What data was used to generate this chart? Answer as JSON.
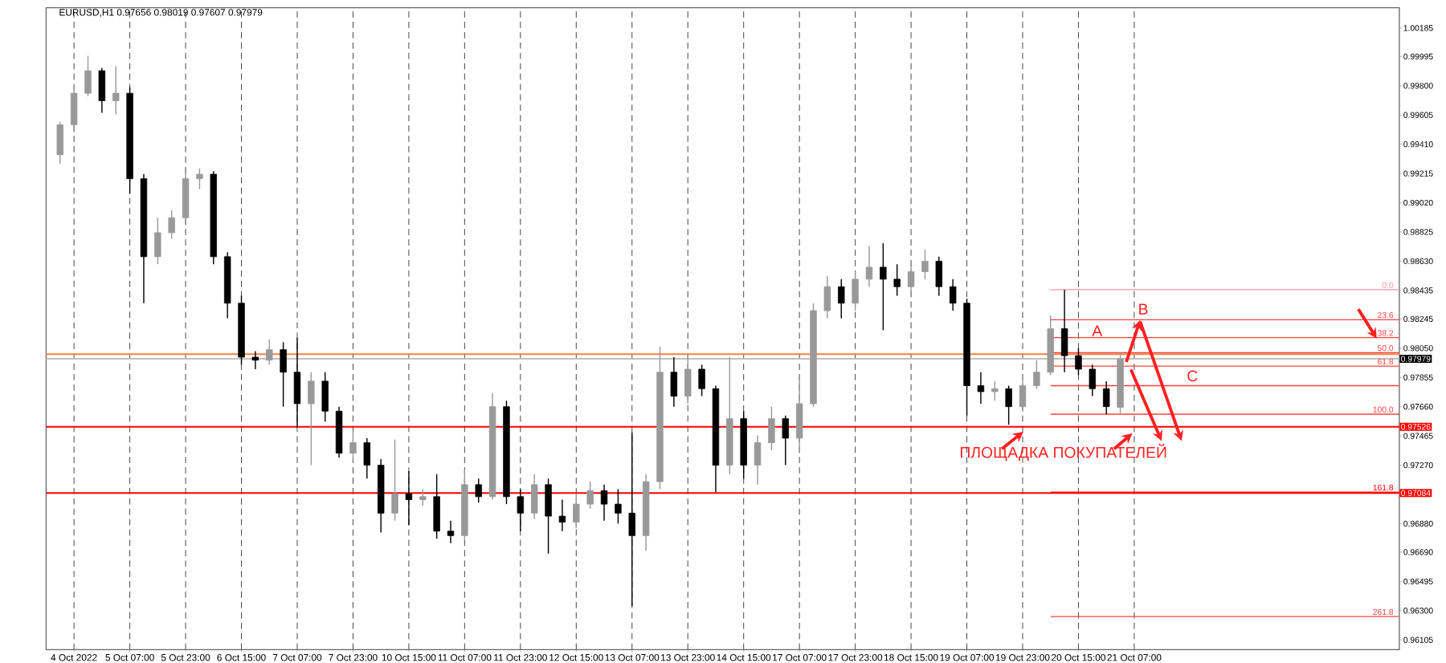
{
  "chart_data": {
    "type": "candlestick",
    "title": "EURUSD,H1  0.97656 0.98019 0.97607 0.97979",
    "categories": [
      null,
      "4 Oct 2022",
      null,
      null,
      null,
      "5 Oct 07:00",
      null,
      null,
      null,
      "5 Oct 23:00",
      null,
      null,
      null,
      "6 Oct 15:00",
      null,
      null,
      null,
      "7 Oct 07:00",
      null,
      null,
      null,
      "7 Oct 23:00",
      null,
      null,
      null,
      "10 Oct 15:00",
      null,
      null,
      null,
      "11 Oct 07:00",
      null,
      null,
      null,
      "11 Oct 23:00",
      null,
      null,
      null,
      "12 Oct 15:00",
      null,
      null,
      null,
      "13 Oct 07:00",
      null,
      null,
      null,
      "13 Oct 23:00",
      null,
      null,
      null,
      "14 Oct 15:00",
      null,
      null,
      null,
      "17 Oct 07:00",
      null,
      null,
      null,
      "17 Oct 23:00",
      null,
      null,
      null,
      "18 Oct 15:00",
      null,
      null,
      null,
      "19 Oct 07:00",
      null,
      null,
      null,
      "19 Oct 23:00",
      null,
      null,
      null,
      "20 Oct 15:00",
      null,
      null,
      null,
      "21 Oct 07:00",
      null,
      null,
      null,
      null,
      null,
      null,
      null,
      null,
      null,
      null,
      null,
      null,
      null,
      null,
      null,
      null,
      null,
      null,
      null
    ],
    "ohlc": [
      [
        0.9934,
        0.9956,
        0.9928,
        0.9954
      ],
      [
        0.9954,
        0.998,
        0.9949,
        0.9975
      ],
      [
        0.9975,
        1.0,
        0.9973,
        0.999
      ],
      [
        0.999,
        0.9992,
        0.9962,
        0.997
      ],
      [
        0.997,
        0.9993,
        0.9961,
        0.9975
      ],
      [
        0.9975,
        0.9979,
        0.9908,
        0.9918
      ],
      [
        0.9918,
        0.9921,
        0.9835,
        0.9866
      ],
      [
        0.9866,
        0.9892,
        0.9861,
        0.9882
      ],
      [
        0.9882,
        0.9897,
        0.9878,
        0.9892
      ],
      [
        0.9892,
        0.9925,
        0.9887,
        0.9918
      ],
      [
        0.9918,
        0.9925,
        0.9911,
        0.9921
      ],
      [
        0.9921,
        0.9923,
        0.9861,
        0.9866
      ],
      [
        0.9866,
        0.9869,
        0.9825,
        0.9835
      ],
      [
        0.9835,
        0.984,
        0.9794,
        0.9799
      ],
      [
        0.9799,
        0.9803,
        0.9791,
        0.9797
      ],
      [
        0.9797,
        0.9811,
        0.9794,
        0.9804
      ],
      [
        0.9804,
        0.9809,
        0.9766,
        0.9789
      ],
      [
        0.9789,
        0.9812,
        0.9752,
        0.9768
      ],
      [
        0.9768,
        0.9789,
        0.9727,
        0.9783
      ],
      [
        0.9783,
        0.9789,
        0.9756,
        0.9763
      ],
      [
        0.9763,
        0.9766,
        0.9732,
        0.9735
      ],
      [
        0.9735,
        0.975,
        0.9731,
        0.9742
      ],
      [
        0.9742,
        0.9745,
        0.9718,
        0.9727
      ],
      [
        0.9727,
        0.9731,
        0.9682,
        0.9695
      ],
      [
        0.9695,
        0.9744,
        0.969,
        0.9708
      ],
      [
        0.9708,
        0.9723,
        0.9687,
        0.9704
      ],
      [
        0.9704,
        0.9711,
        0.97,
        0.9706
      ],
      [
        0.9706,
        0.9721,
        0.9678,
        0.9683
      ],
      [
        0.9683,
        0.969,
        0.9675,
        0.968
      ],
      [
        0.968,
        0.9724,
        0.9677,
        0.9714
      ],
      [
        0.9714,
        0.9718,
        0.9702,
        0.9706
      ],
      [
        0.9706,
        0.9775,
        0.9704,
        0.9766
      ],
      [
        0.9766,
        0.977,
        0.9701,
        0.9706
      ],
      [
        0.9706,
        0.9711,
        0.9683,
        0.9695
      ],
      [
        0.9695,
        0.9721,
        0.9691,
        0.9714
      ],
      [
        0.9714,
        0.9718,
        0.9668,
        0.9693
      ],
      [
        0.9693,
        0.9704,
        0.9683,
        0.9689
      ],
      [
        0.9689,
        0.9708,
        0.9685,
        0.9701
      ],
      [
        0.9701,
        0.9716,
        0.9698,
        0.971
      ],
      [
        0.971,
        0.9714,
        0.969,
        0.9701
      ],
      [
        0.9701,
        0.9711,
        0.9688,
        0.9695
      ],
      [
        0.9695,
        0.9749,
        0.9633,
        0.968
      ],
      [
        0.968,
        0.9721,
        0.967,
        0.9716
      ],
      [
        0.9716,
        0.9806,
        0.9711,
        0.9789
      ],
      [
        0.9789,
        0.9799,
        0.9766,
        0.9773
      ],
      [
        0.9773,
        0.9801,
        0.9768,
        0.9791
      ],
      [
        0.9791,
        0.9794,
        0.9773,
        0.9778
      ],
      [
        0.9778,
        0.978,
        0.9709,
        0.9727
      ],
      [
        0.9727,
        0.9799,
        0.9721,
        0.9758
      ],
      [
        0.9758,
        0.9763,
        0.9718,
        0.9727
      ],
      [
        0.9727,
        0.9747,
        0.9714,
        0.9742
      ],
      [
        0.9742,
        0.9766,
        0.9737,
        0.9758
      ],
      [
        0.9758,
        0.976,
        0.9727,
        0.9745
      ],
      [
        0.9745,
        0.9786,
        0.9735,
        0.9768
      ],
      [
        0.9768,
        0.9835,
        0.9766,
        0.983
      ],
      [
        0.983,
        0.9853,
        0.9825,
        0.9846
      ],
      [
        0.9846,
        0.9851,
        0.9825,
        0.9835
      ],
      [
        0.9835,
        0.9856,
        0.983,
        0.9851
      ],
      [
        0.9851,
        0.9873,
        0.9846,
        0.9859
      ],
      [
        0.9859,
        0.9875,
        0.9817,
        0.9851
      ],
      [
        0.9851,
        0.9861,
        0.984,
        0.9846
      ],
      [
        0.9846,
        0.9861,
        0.984,
        0.9856
      ],
      [
        0.9856,
        0.9871,
        0.9851,
        0.9863
      ],
      [
        0.9863,
        0.9866,
        0.984,
        0.9846
      ],
      [
        0.9846,
        0.9851,
        0.983,
        0.9835
      ],
      [
        0.9835,
        0.9838,
        0.976,
        0.978
      ],
      [
        0.978,
        0.9789,
        0.9768,
        0.9776
      ],
      [
        0.9776,
        0.9783,
        0.977,
        0.9778
      ],
      [
        0.9778,
        0.978,
        0.9754,
        0.9766
      ],
      [
        0.9766,
        0.9784,
        0.9763,
        0.978
      ],
      [
        0.978,
        0.9797,
        0.9778,
        0.9789
      ],
      [
        0.9789,
        0.9827,
        0.9787,
        0.9818
      ],
      [
        0.9818,
        0.9844,
        0.9789,
        0.98
      ],
      [
        0.98,
        0.9805,
        0.9787,
        0.9791
      ],
      [
        0.9791,
        0.9794,
        0.9773,
        0.9778
      ],
      [
        0.9778,
        0.9783,
        0.9761,
        0.9766
      ],
      [
        0.97656,
        0.98019,
        0.97607,
        0.97979
      ],
      null,
      null,
      null,
      null,
      null,
      null,
      null,
      null,
      null,
      null,
      null,
      null,
      null,
      null,
      null,
      null,
      null,
      null,
      null,
      null
    ],
    "colors": [
      "#999999",
      "#999999",
      "#999999",
      "#000000",
      "#999999",
      "#000000",
      "#000000",
      "#999999",
      "#999999",
      "#999999",
      "#999999",
      "#000000",
      "#000000",
      "#000000",
      "#000000",
      "#999999",
      "#000000",
      "#000000",
      "#999999",
      "#000000",
      "#000000",
      "#999999",
      "#000000",
      "#000000",
      "#999999",
      "#000000",
      "#999999",
      "#000000",
      "#000000",
      "#999999",
      "#000000",
      "#999999",
      "#000000",
      "#000000",
      "#999999",
      "#000000",
      "#000000",
      "#999999",
      "#999999",
      "#000000",
      "#000000",
      "#000000",
      "#999999",
      "#999999",
      "#000000",
      "#999999",
      "#000000",
      "#000000",
      "#999999",
      "#000000",
      "#999999",
      "#999999",
      "#000000",
      "#999999",
      "#999999",
      "#999999",
      "#000000",
      "#999999",
      "#999999",
      "#000000",
      "#000000",
      "#999999",
      "#999999",
      "#000000",
      "#000000",
      "#000000",
      "#000000",
      "#999999",
      "#000000",
      "#999999",
      "#999999",
      "#999999",
      "#000000",
      "#000000",
      "#000000",
      "#000000",
      "#999999",
      null,
      null,
      null,
      null,
      null,
      null,
      null,
      null,
      null,
      null,
      null,
      null,
      null,
      null,
      null,
      null,
      null,
      null,
      null,
      null
    ],
    "series": [
      {
        "type": "line",
        "name": "0.0",
        "color": "#ff9999",
        "values": [
          null,
          null,
          null,
          null,
          null,
          null,
          null,
          null,
          null,
          null,
          null,
          null,
          null,
          null,
          null,
          null,
          null,
          null,
          null,
          null,
          null,
          null,
          null,
          null,
          null,
          null,
          null,
          null,
          null,
          null,
          null,
          null,
          null,
          null,
          null,
          null,
          null,
          null,
          null,
          null,
          null,
          null,
          null,
          null,
          null,
          null,
          null,
          null,
          null,
          null,
          null,
          null,
          null,
          null,
          null,
          null,
          null,
          null,
          null,
          null,
          null,
          null,
          null,
          null,
          null,
          null,
          null,
          null,
          null,
          null,
          null,
          0.9844,
          0.9844,
          0.9844,
          0.9844,
          0.9844,
          0.9844,
          0.9844,
          0.9844,
          0.9844,
          0.9844,
          0.9844,
          0.9844,
          0.9844,
          0.9844,
          0.9844,
          0.9844,
          0.9844,
          0.9844,
          0.9844,
          0.9844,
          0.9844,
          0.9844,
          0.9844,
          0.9844,
          0.9844,
          0.9844
        ]
      },
      {
        "type": "line",
        "name": "23.6",
        "color": "#ff4040",
        "values": [
          null,
          null,
          null,
          null,
          null,
          null,
          null,
          null,
          null,
          null,
          null,
          null,
          null,
          null,
          null,
          null,
          null,
          null,
          null,
          null,
          null,
          null,
          null,
          null,
          null,
          null,
          null,
          null,
          null,
          null,
          null,
          null,
          null,
          null,
          null,
          null,
          null,
          null,
          null,
          null,
          null,
          null,
          null,
          null,
          null,
          null,
          null,
          null,
          null,
          null,
          null,
          null,
          null,
          null,
          null,
          null,
          null,
          null,
          null,
          null,
          null,
          null,
          null,
          null,
          null,
          null,
          null,
          null,
          null,
          null,
          null,
          0.9824,
          0.9824,
          0.9824,
          0.9824,
          0.9824,
          0.9824,
          0.9824,
          0.9824,
          0.9824,
          0.9824,
          0.9824,
          0.9824,
          0.9824,
          0.9824,
          0.9824,
          0.9824,
          0.9824,
          0.9824,
          0.9824,
          0.9824,
          0.9824,
          0.9824,
          0.9824,
          0.9824,
          0.9824,
          0.9824
        ]
      },
      {
        "type": "line",
        "name": "38.2",
        "color": "#ff4040",
        "values": [
          null,
          null,
          null,
          null,
          null,
          null,
          null,
          null,
          null,
          null,
          null,
          null,
          null,
          null,
          null,
          null,
          null,
          null,
          null,
          null,
          null,
          null,
          null,
          null,
          null,
          null,
          null,
          null,
          null,
          null,
          null,
          null,
          null,
          null,
          null,
          null,
          null,
          null,
          null,
          null,
          null,
          null,
          null,
          null,
          null,
          null,
          null,
          null,
          null,
          null,
          null,
          null,
          null,
          null,
          null,
          null,
          null,
          null,
          null,
          null,
          null,
          null,
          null,
          null,
          null,
          null,
          null,
          null,
          null,
          null,
          null,
          0.9812,
          0.9812,
          0.9812,
          0.9812,
          0.9812,
          0.9812,
          0.9812,
          0.9812,
          0.9812,
          0.9812,
          0.9812,
          0.9812,
          0.9812,
          0.9812,
          0.9812,
          0.9812,
          0.9812,
          0.9812,
          0.9812,
          0.9812,
          0.9812,
          0.9812,
          0.9812,
          0.9812,
          0.9812,
          0.9812
        ]
      },
      {
        "type": "line",
        "name": "50.0",
        "color": "#ff4040",
        "values": [
          null,
          null,
          null,
          null,
          null,
          null,
          null,
          null,
          null,
          null,
          null,
          null,
          null,
          null,
          null,
          null,
          null,
          null,
          null,
          null,
          null,
          null,
          null,
          null,
          null,
          null,
          null,
          null,
          null,
          null,
          null,
          null,
          null,
          null,
          null,
          null,
          null,
          null,
          null,
          null,
          null,
          null,
          null,
          null,
          null,
          null,
          null,
          null,
          null,
          null,
          null,
          null,
          null,
          null,
          null,
          null,
          null,
          null,
          null,
          null,
          null,
          null,
          null,
          null,
          null,
          null,
          null,
          null,
          null,
          null,
          null,
          0.9802,
          0.9802,
          0.9802,
          0.9802,
          0.9802,
          0.9802,
          0.9802,
          0.9802,
          0.9802,
          0.9802,
          0.9802,
          0.9802,
          0.9802,
          0.9802,
          0.9802,
          0.9802,
          0.9802,
          0.9802,
          0.9802,
          0.9802,
          0.9802,
          0.9802,
          0.9802,
          0.9802,
          0.9802,
          0.9802
        ]
      },
      {
        "type": "line",
        "name": "61.8",
        "color": "#ff4040",
        "values": [
          null,
          null,
          null,
          null,
          null,
          null,
          null,
          null,
          null,
          null,
          null,
          null,
          null,
          null,
          null,
          null,
          null,
          null,
          null,
          null,
          null,
          null,
          null,
          null,
          null,
          null,
          null,
          null,
          null,
          null,
          null,
          null,
          null,
          null,
          null,
          null,
          null,
          null,
          null,
          null,
          null,
          null,
          null,
          null,
          null,
          null,
          null,
          null,
          null,
          null,
          null,
          null,
          null,
          null,
          null,
          null,
          null,
          null,
          null,
          null,
          null,
          null,
          null,
          null,
          null,
          null,
          null,
          null,
          null,
          null,
          null,
          0.9793,
          0.9793,
          0.9793,
          0.9793,
          0.9793,
          0.9793,
          0.9793,
          0.9793,
          0.9793,
          0.9793,
          0.9793,
          0.9793,
          0.9793,
          0.9793,
          0.9793,
          0.9793,
          0.9793,
          0.9793,
          0.9793,
          0.9793,
          0.9793,
          0.9793,
          0.9793,
          0.9793,
          0.9793,
          0.9793
        ]
      },
      {
        "type": "line",
        "color": "#ff4040",
        "values": [
          null,
          null,
          null,
          null,
          null,
          null,
          null,
          null,
          null,
          null,
          null,
          null,
          null,
          null,
          null,
          null,
          null,
          null,
          null,
          null,
          null,
          null,
          null,
          null,
          null,
          null,
          null,
          null,
          null,
          null,
          null,
          null,
          null,
          null,
          null,
          null,
          null,
          null,
          null,
          null,
          null,
          null,
          null,
          null,
          null,
          null,
          null,
          null,
          null,
          null,
          null,
          null,
          null,
          null,
          null,
          null,
          null,
          null,
          null,
          null,
          null,
          null,
          null,
          null,
          null,
          null,
          null,
          null,
          null,
          null,
          null,
          0.978,
          0.978,
          0.978,
          0.978,
          0.978,
          0.978,
          0.978,
          0.978,
          0.978,
          0.978,
          0.978,
          0.978,
          0.978,
          0.978,
          0.978,
          0.978,
          0.978,
          0.978,
          0.978,
          0.978,
          0.978,
          0.978,
          0.978,
          0.978,
          0.978,
          0.978
        ]
      },
      {
        "type": "line",
        "name": "100.0",
        "color": "#ff4040",
        "values": [
          null,
          null,
          null,
          null,
          null,
          null,
          null,
          null,
          null,
          null,
          null,
          null,
          null,
          null,
          null,
          null,
          null,
          null,
          null,
          null,
          null,
          null,
          null,
          null,
          null,
          null,
          null,
          null,
          null,
          null,
          null,
          null,
          null,
          null,
          null,
          null,
          null,
          null,
          null,
          null,
          null,
          null,
          null,
          null,
          null,
          null,
          null,
          null,
          null,
          null,
          null,
          null,
          null,
          null,
          null,
          null,
          null,
          null,
          null,
          null,
          null,
          null,
          null,
          null,
          null,
          null,
          null,
          null,
          null,
          null,
          null,
          0.9761,
          0.9761,
          0.9761,
          0.9761,
          0.9761,
          0.9761,
          0.9761,
          0.9761,
          0.9761,
          0.9761,
          0.9761,
          0.9761,
          0.9761,
          0.9761,
          0.9761,
          0.9761,
          0.9761,
          0.9761,
          0.9761,
          0.9761,
          0.9761,
          0.9761,
          0.9761,
          0.9761,
          0.9761,
          0.9761
        ]
      },
      {
        "type": "line",
        "name": "161.8",
        "color": "#ff0000",
        "values": [
          null,
          null,
          null,
          null,
          null,
          null,
          null,
          null,
          null,
          null,
          null,
          null,
          null,
          null,
          null,
          null,
          null,
          null,
          null,
          null,
          null,
          null,
          null,
          null,
          null,
          null,
          null,
          null,
          null,
          null,
          null,
          null,
          null,
          null,
          null,
          null,
          null,
          null,
          null,
          null,
          null,
          null,
          null,
          null,
          null,
          null,
          null,
          null,
          null,
          null,
          null,
          null,
          null,
          null,
          null,
          null,
          null,
          null,
          null,
          null,
          null,
          null,
          null,
          null,
          null,
          null,
          null,
          null,
          null,
          null,
          null,
          0.9709,
          0.9709,
          0.9709,
          0.9709,
          0.9709,
          0.9709,
          0.9709,
          0.9709,
          0.9709,
          0.9709,
          0.9709,
          0.9709,
          0.9709,
          0.9709,
          0.9709,
          0.9709,
          0.9709,
          0.9709,
          0.9709,
          0.9709,
          0.9709,
          0.9709,
          0.9709,
          0.9709,
          0.9709,
          0.9709
        ]
      },
      {
        "type": "line",
        "name": "261.8",
        "color": "#ff4040",
        "values": [
          null,
          null,
          null,
          null,
          null,
          null,
          null,
          null,
          null,
          null,
          null,
          null,
          null,
          null,
          null,
          null,
          null,
          null,
          null,
          null,
          null,
          null,
          null,
          null,
          null,
          null,
          null,
          null,
          null,
          null,
          null,
          null,
          null,
          null,
          null,
          null,
          null,
          null,
          null,
          null,
          null,
          null,
          null,
          null,
          null,
          null,
          null,
          null,
          null,
          null,
          null,
          null,
          null,
          null,
          null,
          null,
          null,
          null,
          null,
          null,
          null,
          null,
          null,
          null,
          null,
          null,
          null,
          null,
          null,
          null,
          null,
          0.9626,
          0.9626,
          0.9626,
          0.9626,
          0.9626,
          0.9626,
          0.9626,
          0.9626,
          0.9626,
          0.9626,
          0.9626,
          0.9626,
          0.9626,
          0.9626,
          0.9626,
          0.9626,
          0.9626,
          0.9626,
          0.9626,
          0.9626,
          0.9626,
          0.9626,
          0.9626,
          0.9626,
          0.9626,
          0.9626
        ]
      }
    ],
    "ref_lines": [
      {
        "axis": "y",
        "value": 0.9801,
        "color": "#ff8040"
      },
      {
        "axis": "y",
        "value": 0.97979,
        "label": "0.97979",
        "color": "#c0c0c0"
      },
      {
        "axis": "y",
        "value": 0.97526,
        "label": "0.97526",
        "color": "#ff0000"
      },
      {
        "axis": "y",
        "value": 0.97084,
        "label": "0.97084",
        "color": "#ff0000"
      }
    ],
    "annotations": [
      "A",
      "B",
      "C",
      {
        "text": "ПЛОЩАДКА ПОКУПАТЕЛЕЙ",
        "y": 0.97526
      }
    ],
    "ylim": [
      0.9604,
      1.0032
    ],
    "yticks": [
      1.00185,
      0.99995,
      {
        "value": 0.998,
        "label": "0.99800"
      },
      0.99605,
      {
        "value": 0.9941,
        "label": "0.99410"
      },
      0.99215,
      {
        "value": 0.9902,
        "label": "0.99020"
      },
      0.98825,
      {
        "value": 0.9863,
        "label": "0.98630"
      },
      0.98435,
      0.98245,
      {
        "value": 0.9805,
        "label": "0.98050"
      },
      0.97855,
      {
        "value": 0.9766,
        "label": "0.97660"
      },
      0.97465,
      {
        "value": 0.9727,
        "label": "0.97270"
      },
      {
        "value": 0.9688,
        "label": "0.96880"
      },
      {
        "value": 0.9669,
        "label": "0.96690"
      },
      0.96495,
      {
        "value": 0.963,
        "label": "0.96300"
      },
      0.96105
    ],
    "grid": "x"
  }
}
